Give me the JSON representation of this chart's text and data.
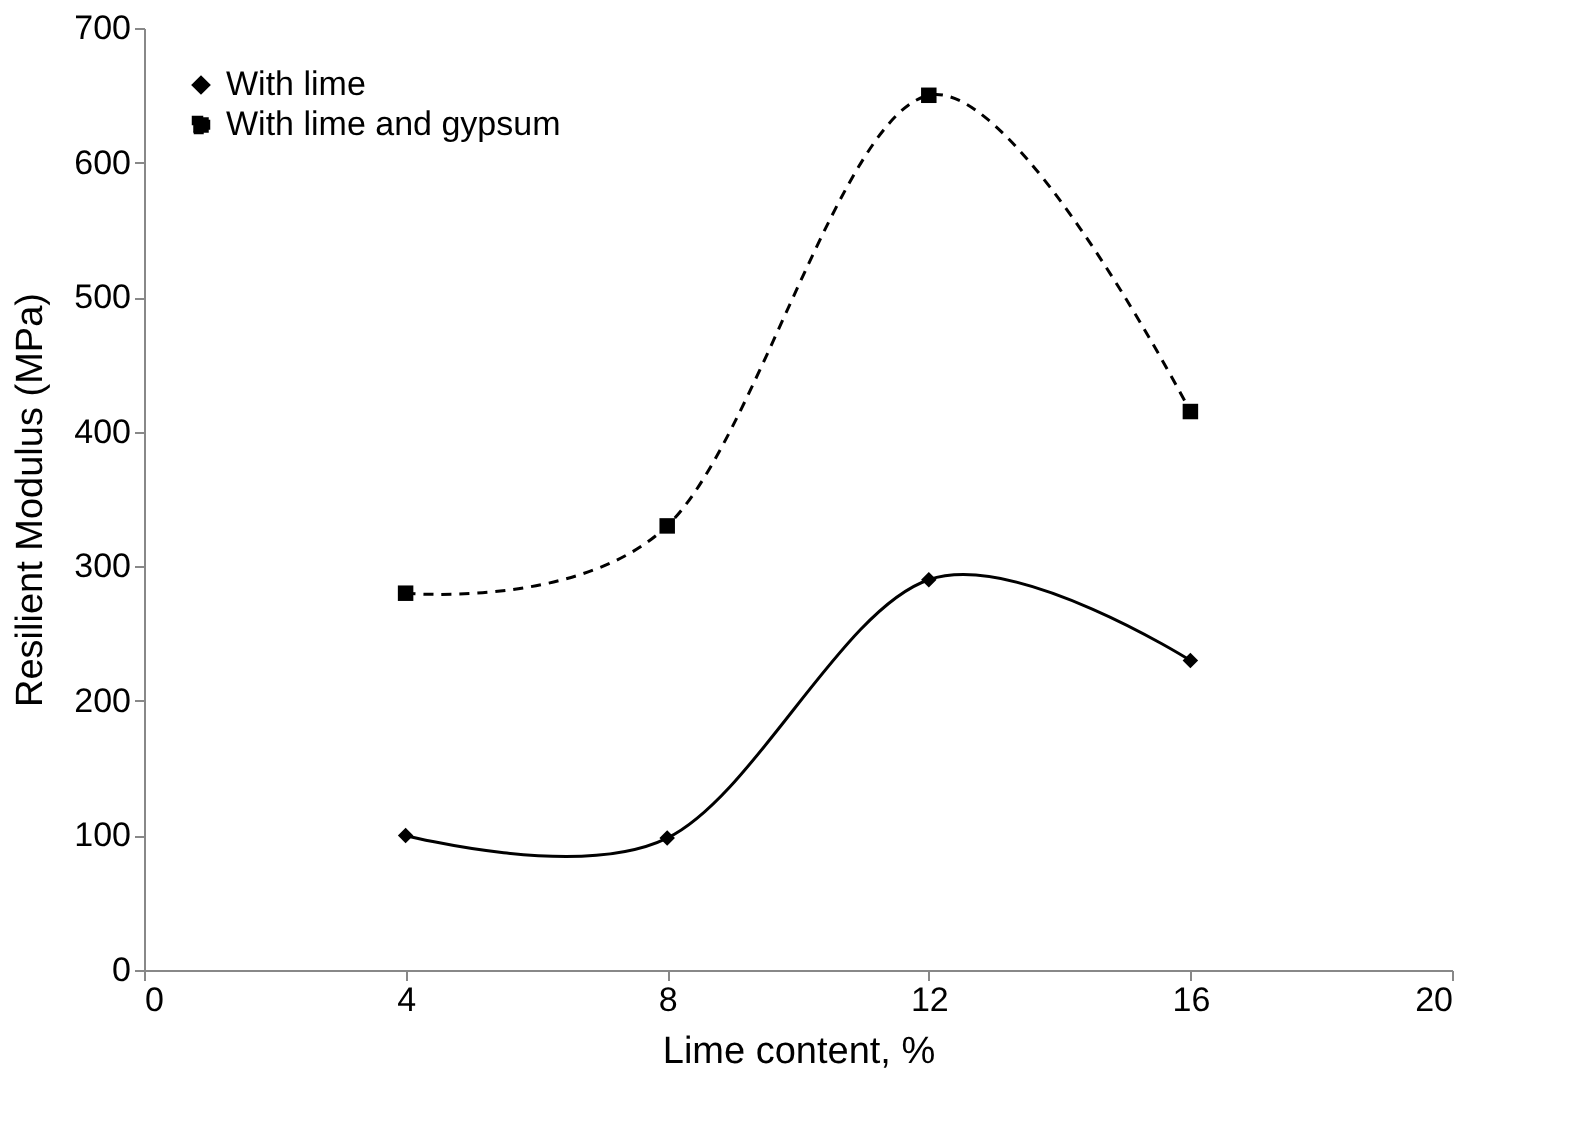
{
  "chart_data": {
    "type": "line",
    "xlabel": "Lime content, %",
    "ylabel": "Resilient Modulus (MPa)",
    "x": [
      4,
      8,
      12,
      16
    ],
    "series": [
      {
        "name": "With lime",
        "color": "#000000",
        "marker": "diamond",
        "line_style": "solid",
        "values": [
          100,
          98,
          290,
          230
        ]
      },
      {
        "name": "With lime and gypsum",
        "color": "#000000",
        "marker": "square",
        "line_style": "dashed",
        "values": [
          280,
          330,
          650,
          415
        ]
      }
    ],
    "xlim": [
      0,
      20
    ],
    "xticks": [
      0,
      4,
      8,
      12,
      16,
      20
    ],
    "ylim": [
      0,
      700
    ],
    "yticks": [
      0,
      100,
      200,
      300,
      400,
      500,
      600,
      700
    ],
    "grid": false,
    "legend": "top left"
  }
}
